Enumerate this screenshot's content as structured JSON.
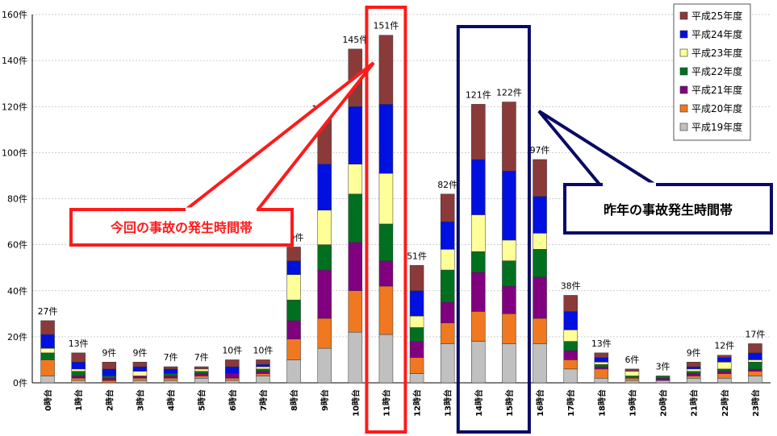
{
  "chart_data": {
    "type": "bar",
    "stacked": true,
    "categories": [
      "0時台",
      "1時台",
      "2時台",
      "3時台",
      "4時台",
      "5時台",
      "6時台",
      "7時台",
      "8時台",
      "9時台",
      "10時台",
      "11時台",
      "12時台",
      "13時台",
      "14時台",
      "15時台",
      "16時台",
      "17時台",
      "18時台",
      "19時台",
      "20時台",
      "21時台",
      "22時台",
      "23時台"
    ],
    "ylim": [
      0,
      160
    ],
    "yticks": [
      "0件",
      "20件",
      "40件",
      "60件",
      "80件",
      "100件",
      "120件",
      "140件",
      "160件"
    ],
    "ytick_values": [
      0,
      20,
      40,
      60,
      80,
      100,
      120,
      140,
      160
    ],
    "grid": true,
    "legend_position": "top-right",
    "series": [
      {
        "name": "平成19年度",
        "color": "#c0c0c0",
        "values": [
          3,
          1,
          0,
          1,
          1,
          2,
          1,
          3,
          10,
          15,
          22,
          21,
          4,
          17,
          18,
          17,
          17,
          6,
          2,
          1,
          1,
          2,
          2,
          3
        ]
      },
      {
        "name": "平成20年度",
        "color": "#f07820",
        "values": [
          7,
          1,
          1,
          1,
          1,
          1,
          1,
          1,
          9,
          13,
          18,
          21,
          7,
          9,
          13,
          13,
          11,
          4,
          4,
          1,
          0,
          1,
          2,
          2
        ]
      },
      {
        "name": "平成21年度",
        "color": "#800080",
        "values": [
          0,
          1,
          1,
          1,
          1,
          1,
          2,
          1,
          8,
          21,
          21,
          11,
          7,
          9,
          17,
          12,
          18,
          4,
          1,
          0,
          1,
          1,
          1,
          1
        ]
      },
      {
        "name": "平成22年度",
        "color": "#007020",
        "values": [
          3,
          2,
          1,
          0,
          1,
          1,
          0,
          1,
          9,
          11,
          21,
          16,
          6,
          14,
          9,
          11,
          12,
          4,
          1,
          1,
          1,
          1,
          1,
          3
        ]
      },
      {
        "name": "平成23年度",
        "color": "#ffff99",
        "values": [
          2,
          1,
          0,
          2,
          0,
          1,
          0,
          1,
          11,
          15,
          13,
          22,
          5,
          9,
          16,
          9,
          7,
          5,
          1,
          2,
          0,
          1,
          3,
          1
        ]
      },
      {
        "name": "平成24年度",
        "color": "#0010e0",
        "values": [
          6,
          3,
          3,
          2,
          2,
          0,
          3,
          1,
          6,
          20,
          25,
          30,
          11,
          12,
          24,
          30,
          16,
          8,
          2,
          0,
          0,
          1,
          2,
          3
        ]
      },
      {
        "name": "平成25年度",
        "color": "#8b3a3a",
        "values": [
          6,
          4,
          3,
          2,
          1,
          1,
          3,
          2,
          6,
          20,
          25,
          30,
          11,
          12,
          24,
          30,
          16,
          7,
          2,
          1,
          0,
          2,
          1,
          4
        ]
      }
    ],
    "total_labels": [
      "27件",
      "13件",
      "9件",
      "9件",
      "7件",
      "7件",
      "10件",
      "10件",
      "59件",
      "115件",
      "145件",
      "151件",
      "51件",
      "82件",
      "121件",
      "122件",
      "97件",
      "38件",
      "13件",
      "6件",
      "3件",
      "9件",
      "12件",
      "17件"
    ],
    "annotations": [
      {
        "text": "今回の事故の発生時間帯",
        "color": "#ff0000",
        "target": "11時台"
      },
      {
        "text": "昨年の事故発生時間帯",
        "color": "#000066",
        "target": [
          "14時台",
          "15時台"
        ]
      }
    ]
  }
}
